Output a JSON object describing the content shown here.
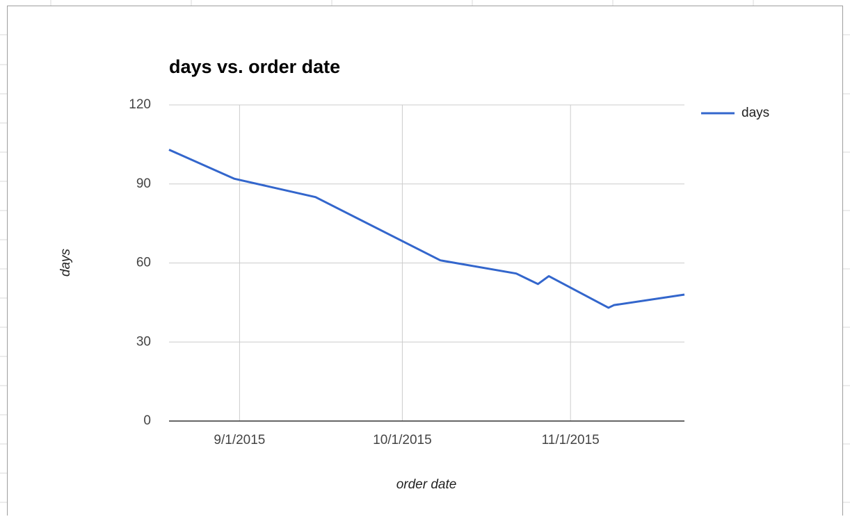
{
  "chart_data": {
    "type": "line",
    "title": "days vs. order date",
    "x_label": "order date",
    "y_label": "days",
    "x": [
      "2015-08-19",
      "2015-08-31",
      "2015-09-15",
      "2015-10-08",
      "2015-10-22",
      "2015-10-26",
      "2015-10-28",
      "2015-11-08",
      "2015-11-09",
      "2015-11-22"
    ],
    "series": [
      {
        "name": "days",
        "color": "#3366cc",
        "values": [
          103,
          92,
          85,
          61,
          56,
          52,
          55,
          43,
          44,
          48
        ]
      }
    ],
    "xlim": [
      "2015-08-19",
      "2015-11-22"
    ],
    "xticks": [
      {
        "value": "2015-09-01",
        "label": "9/1/2015"
      },
      {
        "value": "2015-10-01",
        "label": "10/1/2015"
      },
      {
        "value": "2015-11-01",
        "label": "11/1/2015"
      }
    ],
    "ylim": [
      0,
      120
    ],
    "yticks": [
      0,
      30,
      60,
      90,
      120
    ],
    "grid": true,
    "legend": "right"
  }
}
